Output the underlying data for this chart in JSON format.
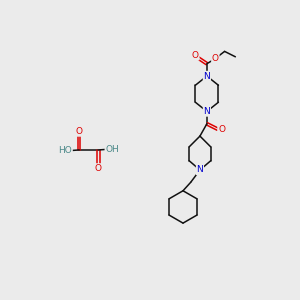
{
  "bg_color": "#ebebeb",
  "atom_colors": {
    "N": "#0000cc",
    "O": "#dd0000",
    "H": "#4a8888"
  },
  "bond_color": "#111111",
  "fig_size": [
    3.0,
    3.0
  ],
  "dpi": 100
}
